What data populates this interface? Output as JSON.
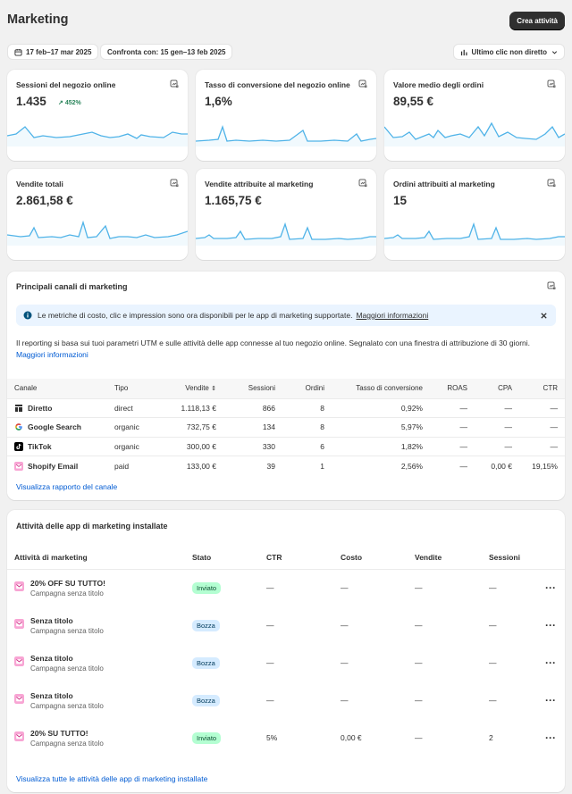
{
  "page": {
    "title": "Marketing",
    "create_button": "Crea attività"
  },
  "filters": {
    "date_range": "17 feb–17 mar 2025",
    "compare": "Confronta con: 15 gen–13 feb 2025",
    "attribution": "Ultimo clic non diretto"
  },
  "metrics": [
    {
      "title": "Sessioni del negozio online",
      "value": "1.435",
      "delta": "452%"
    },
    {
      "title": "Tasso di conversione del negozio online",
      "value": "1,6%"
    },
    {
      "title": "Valore medio degli ordini",
      "value": "89,55 €"
    },
    {
      "title": "Vendite totali",
      "value": "2.861,58 €"
    },
    {
      "title": "Vendite attribuite al marketing",
      "value": "1.165,75 €"
    },
    {
      "title": "Ordini attribuiti al marketing",
      "value": "15"
    }
  ],
  "channels": {
    "title": "Principali canali di marketing",
    "banner_text": "Le metriche di costo, clic e impression sono ora disponibili per le app di marketing supportate.",
    "banner_link": "Maggiori informazioni",
    "description": "Il reporting si basa sui tuoi parametri UTM e sulle attività delle app connesse al tuo negozio online. Segnalato con una finestra di attribuzione di 30 giorni.",
    "more_link": "Maggiori informazioni",
    "columns": [
      "Canale",
      "Tipo",
      "Vendite",
      "Sessioni",
      "Ordini",
      "Tasso di conversione",
      "ROAS",
      "CPA",
      "CTR"
    ],
    "rows": [
      {
        "icon": "direct-icon",
        "name": "Diretto",
        "type": "direct",
        "sales": "1.118,13 €",
        "sessions": "866",
        "orders": "8",
        "conv": "0,92%",
        "roas": "—",
        "cpa": "—",
        "ctr": "—"
      },
      {
        "icon": "google-icon",
        "name": "Google Search",
        "type": "organic",
        "sales": "732,75 €",
        "sessions": "134",
        "orders": "8",
        "conv": "5,97%",
        "roas": "—",
        "cpa": "—",
        "ctr": "—"
      },
      {
        "icon": "tiktok-icon",
        "name": "TikTok",
        "type": "organic",
        "sales": "300,00 €",
        "sessions": "330",
        "orders": "6",
        "conv": "1,82%",
        "roas": "—",
        "cpa": "—",
        "ctr": "—"
      },
      {
        "icon": "shopify-email-icon",
        "name": "Shopify Email",
        "type": "paid",
        "sales": "133,00 €",
        "sessions": "39",
        "orders": "1",
        "conv": "2,56%",
        "roas": "—",
        "cpa": "0,00 €",
        "ctr": "19,15%"
      }
    ],
    "footer_link": "Visualizza rapporto del canale"
  },
  "activities": {
    "title": "Attività delle app di marketing installate",
    "columns": [
      "Attività di marketing",
      "Stato",
      "CTR",
      "Costo",
      "Vendite",
      "Sessioni"
    ],
    "rows": [
      {
        "name": "20% OFF SU TUTTO!",
        "sub": "Campagna senza titolo",
        "status": "Inviato",
        "status_color": "#b4fed2",
        "ctr": "—",
        "cost": "—",
        "sales": "—",
        "sessions": "—"
      },
      {
        "name": "Senza titolo",
        "sub": "Campagna senza titolo",
        "status": "Bozza",
        "status_color": "#d5ebff",
        "ctr": "—",
        "cost": "—",
        "sales": "—",
        "sessions": "—"
      },
      {
        "name": "Senza titolo",
        "sub": "Campagna senza titolo",
        "status": "Bozza",
        "status_color": "#d5ebff",
        "ctr": "—",
        "cost": "—",
        "sales": "—",
        "sessions": "—"
      },
      {
        "name": "Senza titolo",
        "sub": "Campagna senza titolo",
        "status": "Bozza",
        "status_color": "#d5ebff",
        "ctr": "—",
        "cost": "—",
        "sales": "—",
        "sessions": "—"
      },
      {
        "name": "20% SU TUTTO!",
        "sub": "Campagna senza titolo",
        "status": "Inviato",
        "status_color": "#b4fed2",
        "ctr": "5%",
        "cost": "0,00 €",
        "sales": "—",
        "sessions": "2"
      }
    ],
    "footer_link": "Visualizza tutte le attività delle app di marketing installate"
  },
  "colors": {
    "accent": "#005bd3",
    "spark": "#4fb3e8",
    "positive": "#29845a"
  }
}
